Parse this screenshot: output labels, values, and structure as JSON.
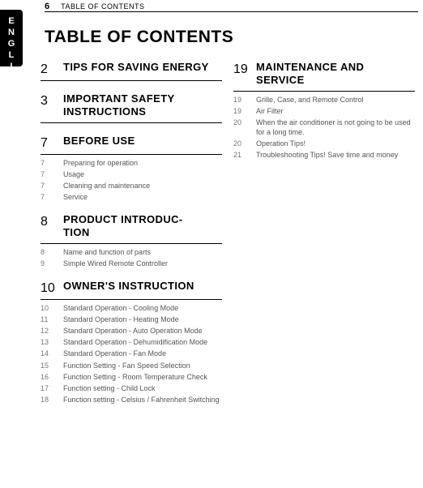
{
  "lang_tab": "ENGLISH",
  "header": {
    "page": "6",
    "label": "TABLE OF CONTENTS"
  },
  "title": "TABLE OF CONTENTS",
  "left": [
    {
      "page": "2",
      "title": "TIPS FOR SAVING ENERGY",
      "entries": []
    },
    {
      "page": "3",
      "title": "IMPORTANT SAFETY INSTRUCTIONS",
      "entries": []
    },
    {
      "page": "7",
      "title": "BEFORE USE",
      "entries": [
        {
          "p": "7",
          "t": "Preparing for operation"
        },
        {
          "p": "7",
          "t": "Usage"
        },
        {
          "p": "7",
          "t": "Cleaning and maintenance"
        },
        {
          "p": "7",
          "t": "Service"
        }
      ]
    },
    {
      "page": "8",
      "title": "PRODUCT INTRODUC-\nTION",
      "entries": [
        {
          "p": "8",
          "t": "Name and function of parts"
        },
        {
          "p": "9",
          "t": "Simple Wired Remote Controller"
        }
      ]
    },
    {
      "page": "10",
      "title": "OWNER'S INSTRUCTION",
      "entries": [
        {
          "p": "10",
          "t": "Standard Operation - Cooling Mode"
        },
        {
          "p": "11",
          "t": "Standard Operation - Heating Mode"
        },
        {
          "p": "12",
          "t": "Standard Operation - Auto Operation Mode"
        },
        {
          "p": "13",
          "t": "Standard Operation - Dehumidification Mode"
        },
        {
          "p": "14",
          "t": "Standard Operation - Fan Mode"
        },
        {
          "p": "15",
          "t": "Function Setting - Fan Speed Selection"
        },
        {
          "p": "16",
          "t": "Function Setting - Room Temperature Check"
        },
        {
          "p": "17",
          "t": "Function setting - Child Lock"
        },
        {
          "p": "18",
          "t": "Function setting - Celsius / Fahrenheit Switching"
        }
      ]
    }
  ],
  "right": [
    {
      "page": "19",
      "title": "MAINTENANCE AND SERVICE",
      "entries": [
        {
          "p": "19",
          "t": "Grille, Case, and Remote Control"
        },
        {
          "p": "19",
          "t": "Air Filter"
        },
        {
          "p": "20",
          "t": "When the air conditioner is not going to be used for a long time."
        },
        {
          "p": "20",
          "t": "Operation Tips!"
        },
        {
          "p": "21",
          "t": "Troubleshooting Tips! Save time and money"
        }
      ]
    }
  ]
}
